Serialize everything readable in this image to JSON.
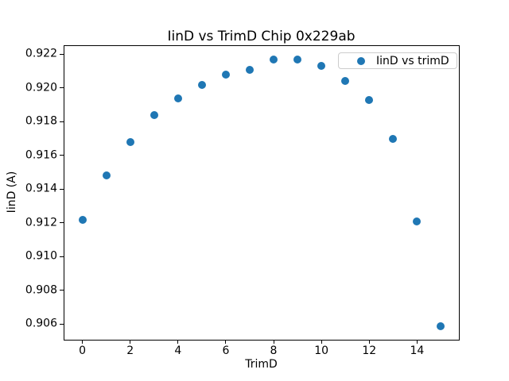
{
  "figure": {
    "title": "IinD vs TrimD Chip 0x229ab",
    "xlabel": "TrimD",
    "ylabel": "IinD (A)",
    "legend": {
      "label": "IinD vs trimD",
      "marker_icon": "filled-circle",
      "marker_color": "#1f77b4",
      "position": "upper right"
    }
  },
  "colors": {
    "point": "#1f77b4",
    "spine": "#000000",
    "legend_border": "#cccccc",
    "background": "#ffffff",
    "text": "#000000"
  },
  "chart_data": {
    "type": "scatter",
    "title": "IinD vs TrimD Chip 0x229ab",
    "xlabel": "TrimD",
    "ylabel": "IinD (A)",
    "series": [
      {
        "name": "IinD vs trimD",
        "x": [
          0,
          1,
          2,
          3,
          4,
          5,
          6,
          7,
          8,
          9,
          10,
          11,
          12,
          13,
          14,
          15
        ],
        "y": [
          0.9122,
          0.9148,
          0.9168,
          0.9184,
          0.9194,
          0.9202,
          0.9208,
          0.9211,
          0.9217,
          0.9217,
          0.9213,
          0.9204,
          0.9193,
          0.917,
          0.9121,
          0.9059
        ]
      }
    ],
    "point_color": "#1f77b4",
    "xlim": [
      -0.75,
      15.75
    ],
    "ylim": [
      0.90508,
      0.92249
    ],
    "xticks": [
      0,
      2,
      4,
      6,
      8,
      10,
      12,
      14
    ],
    "xtick_labels": [
      "0",
      "2",
      "4",
      "6",
      "8",
      "10",
      "12",
      "14"
    ],
    "yticks": [
      0.906,
      0.908,
      0.91,
      0.912,
      0.914,
      0.916,
      0.918,
      0.92,
      0.922
    ],
    "ytick_labels": [
      "0.906",
      "0.908",
      "0.910",
      "0.912",
      "0.914",
      "0.916",
      "0.918",
      "0.920",
      "0.922"
    ],
    "grid": false,
    "legend_position": "upper right"
  }
}
